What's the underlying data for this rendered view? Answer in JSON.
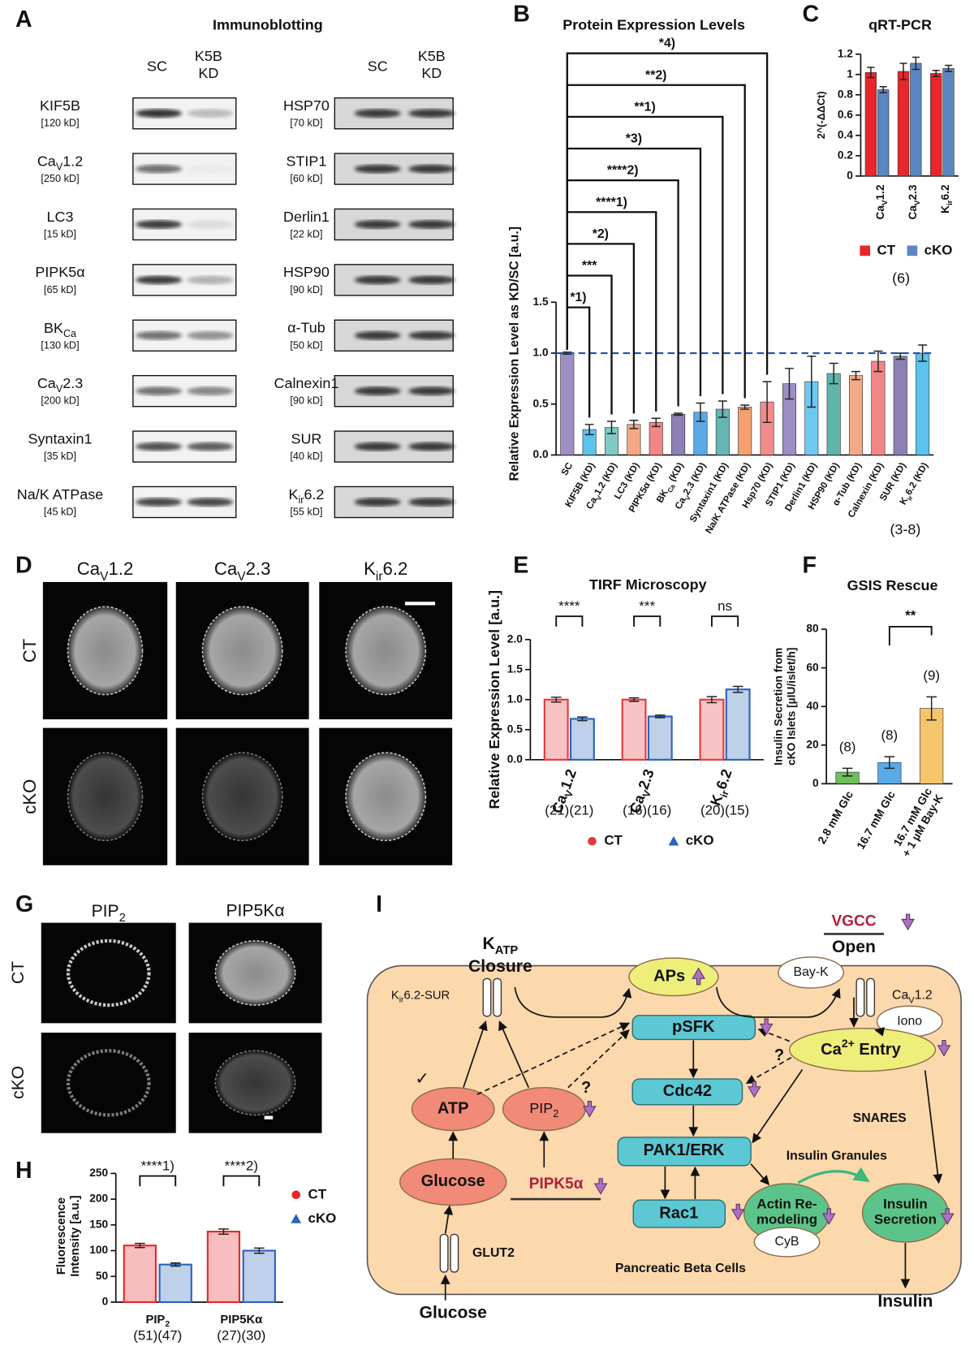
{
  "panel_labels": [
    "A",
    "B",
    "C",
    "D",
    "E",
    "F",
    "G",
    "H",
    "I"
  ],
  "blots": {
    "title": "Immunoblotting",
    "lanes": [
      {
        "lines": [
          "SC"
        ]
      },
      {
        "lines": [
          "K5B",
          "KD"
        ]
      }
    ],
    "left": [
      {
        "name": "KIF5B",
        "size": "[120 kD]"
      },
      {
        "name": [
          "Ca",
          {
            "sub": "V"
          },
          "1.2"
        ],
        "size": "[250 kD]"
      },
      {
        "name": "LC3",
        "size": "[15 kD]"
      },
      {
        "name": "PIPK5α",
        "size": "[65 kD]"
      },
      {
        "name": [
          "BK",
          {
            "sub": "Ca"
          }
        ],
        "size": "[130 kD]"
      },
      {
        "name": [
          "Ca",
          {
            "sub": "V"
          },
          "2.3"
        ],
        "size": "[200 kD]"
      },
      {
        "name": "Syntaxin1",
        "size": "[35 kD]"
      },
      {
        "name": "Na/K ATPase",
        "size": "[45 kD]"
      }
    ],
    "right": [
      {
        "name": "HSP70",
        "size": "[70 kD]"
      },
      {
        "name": "STIP1",
        "size": "[60 kD]"
      },
      {
        "name": "Derlin1",
        "size": "[22 kD]"
      },
      {
        "name": "HSP90",
        "size": "[90 kD]"
      },
      {
        "name": "α-Tub",
        "size": "[50 kD]"
      },
      {
        "name": "Calnexin1",
        "size": "[90 kD]"
      },
      {
        "name": "SUR",
        "size": "[40 kD]"
      },
      {
        "name": [
          "K",
          {
            "sub": "ir"
          },
          "6.2"
        ],
        "size": "[55 kD]"
      }
    ]
  },
  "chart_data": [
    {
      "type": "bar",
      "title": "Protein Expression Levels",
      "y_label": "Relative Expression Level as KD/SC [a.u.]",
      "categories": [
        "SC",
        "KIF5B (KD)",
        [
          "Ca",
          {
            "sub": "V"
          },
          "1.2 (KD)"
        ],
        "LC3 (KD)",
        "PIPK5α (KD)",
        [
          "BK",
          {
            "sub": "Ca"
          },
          " (KD)"
        ],
        [
          "Ca",
          {
            "sub": "V"
          },
          "2.3 (KD)"
        ],
        "Syntaxin1 (KD)",
        "Na/K ATPase (KD)",
        "Hsp70 (KD)",
        "STIP1 (KD)",
        "Derlin1 (KD)",
        "HSP90 (KD)",
        "α-Tub (KD)",
        "Calnexin (KD)",
        "SUR (KD)",
        [
          "K",
          {
            "sub": "ir"
          },
          "6.2 (KD)"
        ]
      ],
      "values": [
        1.0,
        0.25,
        0.27,
        0.3,
        0.32,
        0.4,
        0.42,
        0.45,
        0.47,
        0.52,
        0.7,
        0.72,
        0.8,
        0.78,
        0.92,
        0.97,
        1.0
      ],
      "errors": [
        0.01,
        0.05,
        0.06,
        0.04,
        0.04,
        0.01,
        0.09,
        0.08,
        0.02,
        0.2,
        0.15,
        0.25,
        0.1,
        0.04,
        0.1,
        0.03,
        0.08
      ],
      "colors": [
        "#9d8fc4",
        "#5bc3ec",
        "#7fcac2",
        "#f5a886",
        "#f28585",
        "#8c80b4",
        "#5aaae8",
        "#66b6b4",
        "#f4a070",
        "#f28c8c",
        "#9d8fc4",
        "#6ec8f2",
        "#5fb5aa",
        "#f5a886",
        "#f28585",
        "#8c80b4",
        "#5bc3ec"
      ],
      "reference_line": 1.0,
      "reference_color": "#2255aa",
      "ylim": [
        0,
        1.5
      ],
      "yticks": [
        {
          "value": 0,
          "label": "0.0"
        },
        {
          "value": 0.5,
          "label": "0.5"
        },
        {
          "value": 1,
          "label": "1.0"
        },
        {
          "value": 1.5,
          "label": "1.5"
        }
      ],
      "significance": [
        "*1)",
        "***",
        "*2)",
        "****1)",
        "****2)",
        "*3)",
        "**1)",
        "**2)",
        "*4)"
      ],
      "n_label": "(3-8)"
    },
    {
      "type": "bar",
      "title": "qRT-PCR",
      "y_label": "2^(-ΔΔCt)",
      "categories": [
        [
          "Ca",
          {
            "sub": "V"
          },
          "1.2"
        ],
        [
          "Ca",
          {
            "sub": "V"
          },
          "2.3"
        ],
        [
          "K",
          {
            "sub": "ir"
          },
          "6.2"
        ]
      ],
      "series": [
        {
          "name": "CT",
          "color": "#e8262b",
          "marker": "square",
          "values": [
            1.02,
            1.03,
            1.01
          ],
          "errors": [
            0.05,
            0.08,
            0.03
          ]
        },
        {
          "name": "cKO",
          "color": "#5b86c0",
          "marker": "square",
          "values": [
            0.85,
            1.11,
            1.06
          ],
          "errors": [
            0.03,
            0.06,
            0.03
          ]
        }
      ],
      "ylim": [
        0,
        1.2
      ],
      "yticks": [
        0,
        0.2,
        0.4,
        0.6,
        0.8,
        1,
        1.2
      ],
      "n_label": "(6)"
    },
    {
      "type": "bar",
      "title": "TIRF Microscopy",
      "y_label": "Relative Expression Level [a.u.]",
      "categories": [
        [
          "Ca",
          {
            "sub": "V"
          },
          "1.2"
        ],
        [
          "Ca",
          {
            "sub": "V"
          },
          "2.3"
        ],
        [
          "K",
          {
            "sub": "ir"
          },
          "6.2"
        ]
      ],
      "series": [
        {
          "name": "CT",
          "color": "#e8373a",
          "marker": "circle",
          "values": [
            1.0,
            1.0,
            1.0
          ],
          "errors": [
            0.04,
            0.03,
            0.05
          ]
        },
        {
          "name": "cKO",
          "color": "#2a62b8",
          "marker": "triangle",
          "values": [
            0.68,
            0.72,
            1.17
          ],
          "errors": [
            0.03,
            0.02,
            0.05
          ]
        }
      ],
      "ylim": [
        0,
        2.0
      ],
      "yticks": [
        {
          "value": 0,
          "label": "0.0"
        },
        {
          "value": 0.5,
          "label": "0.5"
        },
        {
          "value": 1,
          "label": "1.0"
        },
        {
          "value": 1.5,
          "label": "1.5"
        },
        {
          "value": 2,
          "label": "2.0"
        }
      ],
      "significance": [
        "****",
        "***",
        "ns"
      ],
      "n_labels": [
        "(21)(21)",
        "(16)(16)",
        "(20)(15)"
      ]
    },
    {
      "type": "bar",
      "title": "GSIS Rescue",
      "y_label": {
        "lines": [
          "Insulin Secretion from",
          "cKO Islets [µIU/islet/h]"
        ]
      },
      "categories": [
        "2.8 mM Glc",
        "16.7 mM Glc",
        {
          "lines": [
            "16.7 mM Glc",
            "+ 1 µM Bay-K"
          ]
        }
      ],
      "values": [
        6,
        11,
        39
      ],
      "errors": [
        2,
        3,
        6
      ],
      "colors": [
        "#6cbf5a",
        "#5aaae8",
        "#f5c56b"
      ],
      "ylim": [
        0,
        80
      ],
      "yticks": [
        0,
        20,
        40,
        60,
        80
      ],
      "significance": [
        "**"
      ],
      "n_labels": [
        "(8)",
        "(8)",
        "(9)"
      ]
    },
    {
      "type": "bar",
      "y_label": {
        "lines": [
          "Fluorescence",
          "Intensity [a.u.]"
        ]
      },
      "categories": [
        [
          "PIP",
          {
            "sub": "2"
          }
        ],
        "PIP5Kα"
      ],
      "series": [
        {
          "name": "CT",
          "color": "#e8262b",
          "marker": "circle",
          "values": [
            110,
            137
          ],
          "errors": [
            4,
            5
          ]
        },
        {
          "name": "cKO",
          "color": "#2a62b8",
          "marker": "triangle",
          "values": [
            73,
            100
          ],
          "errors": [
            3,
            5
          ]
        }
      ],
      "ylim": [
        0,
        250
      ],
      "yticks": [
        0,
        50,
        100,
        150,
        200,
        250
      ],
      "significance": [
        "****1)",
        "****2)"
      ],
      "n_labels": [
        "(51)(47)",
        "(27)(30)"
      ]
    }
  ],
  "microscopy_d": {
    "columns": [
      [
        "Ca",
        {
          "sub": "V"
        },
        "1.2"
      ],
      [
        "Ca",
        {
          "sub": "V"
        },
        "2.3"
      ],
      [
        "K",
        {
          "sub": "ir"
        },
        "6.2"
      ]
    ],
    "rows": [
      "CT",
      "cKO"
    ]
  },
  "microscopy_g": {
    "columns": [
      [
        "PIP",
        {
          "sub": "2"
        }
      ],
      "PIP5Kα"
    ],
    "rows": [
      "CT",
      "cKO"
    ]
  },
  "diagram": {
    "katp": [
      "K",
      {
        "sub": "ATP"
      }
    ],
    "closure": "Closure",
    "kir_sur": [
      "K",
      {
        "sub": "ir"
      },
      "6.2-SUR"
    ],
    "aps": "APs",
    "vgcc": "VGCC",
    "open": "Open",
    "bayk": "Bay-K",
    "cav12": [
      "Ca",
      {
        "sub": "V"
      },
      "1.2"
    ],
    "psfk": "pSFK",
    "iono": "Iono",
    "ca_entry": [
      "Ca",
      {
        "sup": "2+"
      },
      " Entry"
    ],
    "cdc42": "Cdc42",
    "atp": "ATP",
    "pip2": [
      "PIP",
      {
        "sub": "2"
      }
    ],
    "question": "?",
    "pak": "PAK1/ERK",
    "snares": "SNARES",
    "granules": "Insulin Granules",
    "glucose": "Glucose",
    "pipk5a": "PIPK5α",
    "rac1": "Rac1",
    "actin": {
      "lines": [
        "Actin Re-",
        "modeling"
      ]
    },
    "secretion": {
      "lines": [
        "Insulin",
        "Secretion"
      ]
    },
    "cyb": "CyB",
    "glut2": "GLUT2",
    "cells": "Pancreatic Beta Cells",
    "glucose_in": "Glucose",
    "insulin": "Insulin",
    "check": "✓"
  }
}
